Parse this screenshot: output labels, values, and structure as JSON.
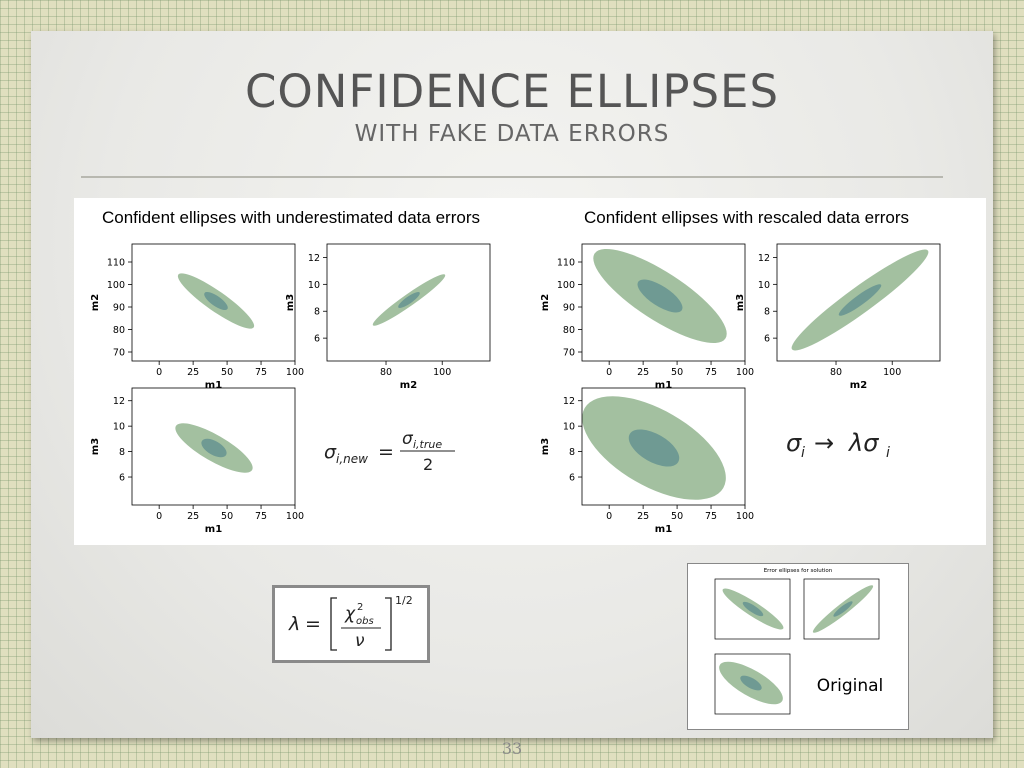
{
  "slide": {
    "title": "CONFIDENCE ELLIPSES",
    "subtitle": "WITH FAKE DATA ERRORS",
    "number": "33"
  },
  "left_panel": {
    "title": "Confident ellipses with underestimated data errors",
    "formula": "σ_i,new = σ_i,true / 2"
  },
  "right_panel": {
    "title": "Confident ellipses with rescaled data errors",
    "formula": "σ_i → λσ_i"
  },
  "lambda_formula": "λ = [χ²_obs / ν]^(1/2)",
  "original": {
    "title": "Error ellipses for solution",
    "label": "Original"
  },
  "colors": {
    "outer": "#a3c0a0",
    "inner": "#6f9a93"
  },
  "chart_data": [
    {
      "type": "scatter",
      "panel": "left-top-left",
      "xlabel": "m1",
      "ylabel": "m2",
      "xlim": [
        -20,
        100
      ],
      "ylim": [
        66,
        118
      ],
      "xticks": [
        "0",
        "25",
        "50",
        "75",
        "100"
      ],
      "yticks": [
        "70",
        "80",
        "90",
        "100",
        "110"
      ]
    },
    {
      "type": "scatter",
      "panel": "left-top-right",
      "xlabel": "m2",
      "ylabel": "m3",
      "xlim": [
        59,
        117
      ],
      "ylim": [
        4.3,
        13.0
      ],
      "xticks": [
        "80",
        "100"
      ],
      "yticks": [
        "6",
        "8",
        "10",
        "12"
      ]
    },
    {
      "type": "scatter",
      "panel": "left-bottom-left",
      "xlabel": "m1",
      "ylabel": "m3",
      "xlim": [
        -20,
        100
      ],
      "ylim": [
        3.8,
        13.0
      ],
      "xticks": [
        "0",
        "25",
        "50",
        "75",
        "100"
      ],
      "yticks": [
        "6",
        "8",
        "10",
        "12"
      ]
    },
    {
      "type": "scatter",
      "panel": "right-top-left",
      "xlabel": "m1",
      "ylabel": "m2",
      "xlim": [
        -20,
        100
      ],
      "ylim": [
        66,
        118
      ],
      "xticks": [
        "0",
        "25",
        "50",
        "75",
        "100"
      ],
      "yticks": [
        "70",
        "80",
        "90",
        "100",
        "110"
      ]
    },
    {
      "type": "scatter",
      "panel": "right-top-right",
      "xlabel": "m2",
      "ylabel": "m3",
      "xlim": [
        59,
        117
      ],
      "ylim": [
        4.3,
        13.0
      ],
      "xticks": [
        "80",
        "100"
      ],
      "yticks": [
        "6",
        "8",
        "10",
        "12"
      ]
    },
    {
      "type": "scatter",
      "panel": "right-bottom-left",
      "xlabel": "m1",
      "ylabel": "m3",
      "xlim": [
        -20,
        100
      ],
      "ylim": [
        3.8,
        13.0
      ],
      "xticks": [
        "0",
        "25",
        "50",
        "75",
        "100"
      ],
      "yticks": [
        "6",
        "8",
        "10",
        "12"
      ]
    }
  ]
}
